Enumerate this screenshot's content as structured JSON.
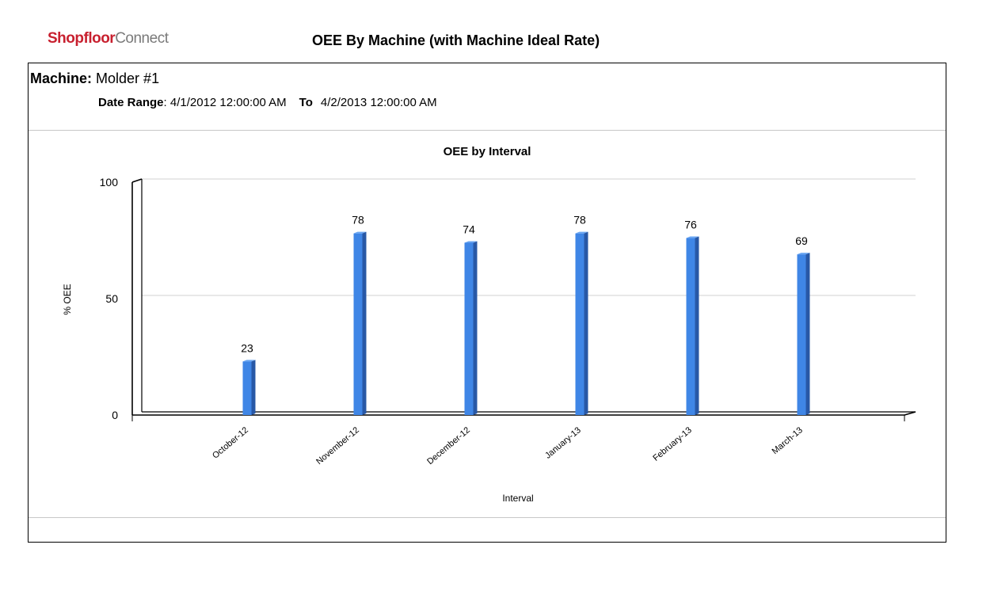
{
  "header": {
    "logo_brand": "Shopfloor",
    "logo_sub": "Connect",
    "report_title": "OEE By Machine (with Machine Ideal Rate)"
  },
  "machine": {
    "label": "Machine:",
    "name": "Molder #1"
  },
  "date_range": {
    "label": "Date Range",
    "separator": ":",
    "from": "4/1/2012 12:00:00 AM",
    "to_label": "To",
    "to": "4/2/2013 12:00:00 AM"
  },
  "colors": {
    "bar_front": "#3f86e6",
    "bar_side": "#2858a6",
    "bar_top": "#6aa6f2",
    "grid": "#d0d0d0"
  },
  "chart_data": {
    "type": "bar",
    "title": "OEE by Interval",
    "xlabel": "Interval",
    "ylabel": "% OEE",
    "categories": [
      "October-12",
      "November-12",
      "December-12",
      "January-13",
      "February-13",
      "March-13"
    ],
    "values": [
      23,
      78,
      74,
      78,
      76,
      69
    ],
    "data_labels": [
      "23",
      "78",
      "74",
      "78",
      "76",
      "69"
    ],
    "ylim": [
      0,
      100
    ],
    "yticks": [
      "0",
      "50",
      "100"
    ],
    "grid": true,
    "legend": "none",
    "style": "3d"
  }
}
